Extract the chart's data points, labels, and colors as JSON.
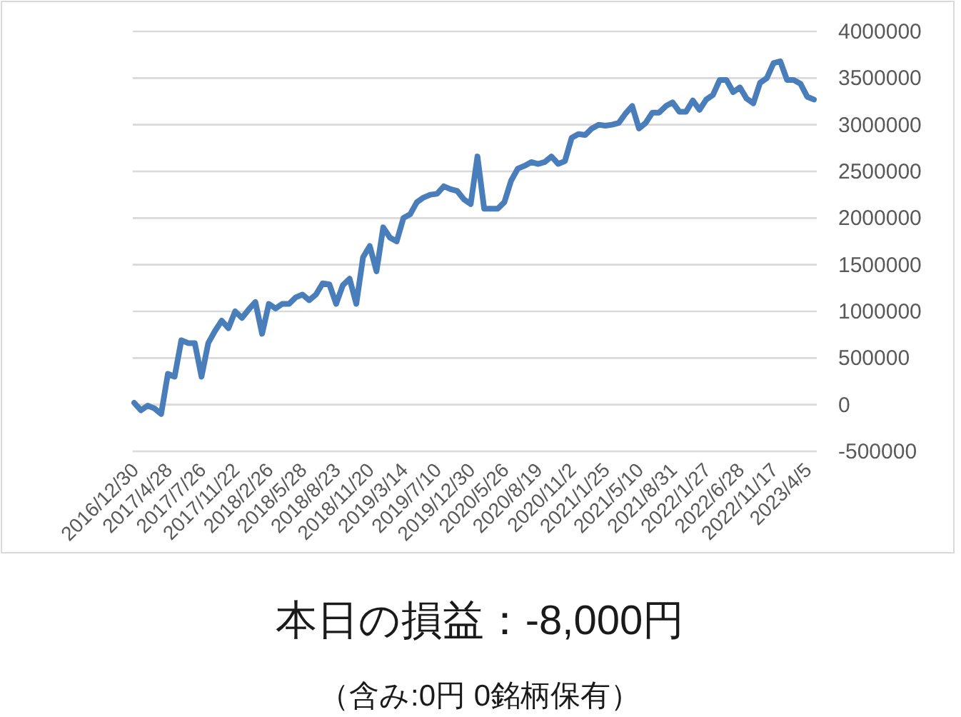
{
  "chart_data": {
    "type": "line",
    "title": "本日の損益：-8,000円",
    "subtitle": "（含み:0円  0銘柄保有）",
    "categories": [
      "2016/12/30",
      null,
      null,
      null,
      null,
      "2017/4/28",
      null,
      null,
      null,
      null,
      "2017/7/26",
      null,
      null,
      null,
      null,
      "2017/11/22",
      null,
      null,
      null,
      null,
      "2018/2/26",
      null,
      null,
      null,
      null,
      "2018/5/28",
      null,
      null,
      null,
      null,
      "2018/8/23",
      null,
      null,
      null,
      null,
      "2018/11/20",
      null,
      null,
      null,
      null,
      "2019/3/14",
      null,
      null,
      null,
      null,
      "2019/7/10",
      null,
      null,
      null,
      null,
      "2019/12/30",
      null,
      null,
      null,
      null,
      "2020/5/26",
      null,
      null,
      null,
      null,
      "2020/8/19",
      null,
      null,
      null,
      null,
      "2020/11/2",
      null,
      null,
      null,
      null,
      "2021/1/25",
      null,
      null,
      null,
      null,
      "2021/5/10",
      null,
      null,
      null,
      null,
      "2021/8/31",
      null,
      null,
      null,
      null,
      "2022/1/27",
      null,
      null,
      null,
      null,
      "2022/6/28",
      null,
      null,
      null,
      null,
      "2022/11/17",
      null,
      null,
      null,
      null,
      "2023/4/5",
      null
    ],
    "series": [
      {
        "color": "#4a7ebb",
        "values": [
          20000,
          -60000,
          -10000,
          -40000,
          -100000,
          330000,
          300000,
          690000,
          660000,
          660000,
          300000,
          660000,
          790000,
          900000,
          820000,
          1000000,
          930000,
          1020000,
          1100000,
          760000,
          1080000,
          1030000,
          1080000,
          1080000,
          1150000,
          1180000,
          1120000,
          1180000,
          1300000,
          1290000,
          1080000,
          1280000,
          1350000,
          1080000,
          1580000,
          1700000,
          1430000,
          1900000,
          1790000,
          1750000,
          2000000,
          2040000,
          2170000,
          2220000,
          2250000,
          2260000,
          2340000,
          2310000,
          2290000,
          2200000,
          2150000,
          2660000,
          2100000,
          2100000,
          2100000,
          2170000,
          2400000,
          2530000,
          2560000,
          2600000,
          2580000,
          2600000,
          2660000,
          2580000,
          2610000,
          2860000,
          2900000,
          2890000,
          2960000,
          3000000,
          2990000,
          3000000,
          3020000,
          3120000,
          3200000,
          2960000,
          3020000,
          3130000,
          3130000,
          3200000,
          3240000,
          3140000,
          3140000,
          3260000,
          3160000,
          3270000,
          3320000,
          3480000,
          3480000,
          3350000,
          3400000,
          3280000,
          3230000,
          3450000,
          3500000,
          3660000,
          3680000,
          3480000,
          3480000,
          3440000,
          3300000,
          3270000
        ]
      }
    ],
    "ylim": [
      -500000,
      4000000
    ],
    "yticks": [
      -500000,
      0,
      500000,
      1000000,
      1500000,
      2000000,
      2500000,
      3000000,
      3500000,
      4000000
    ],
    "grid": "y",
    "marker": "none",
    "line_style": "solid"
  }
}
